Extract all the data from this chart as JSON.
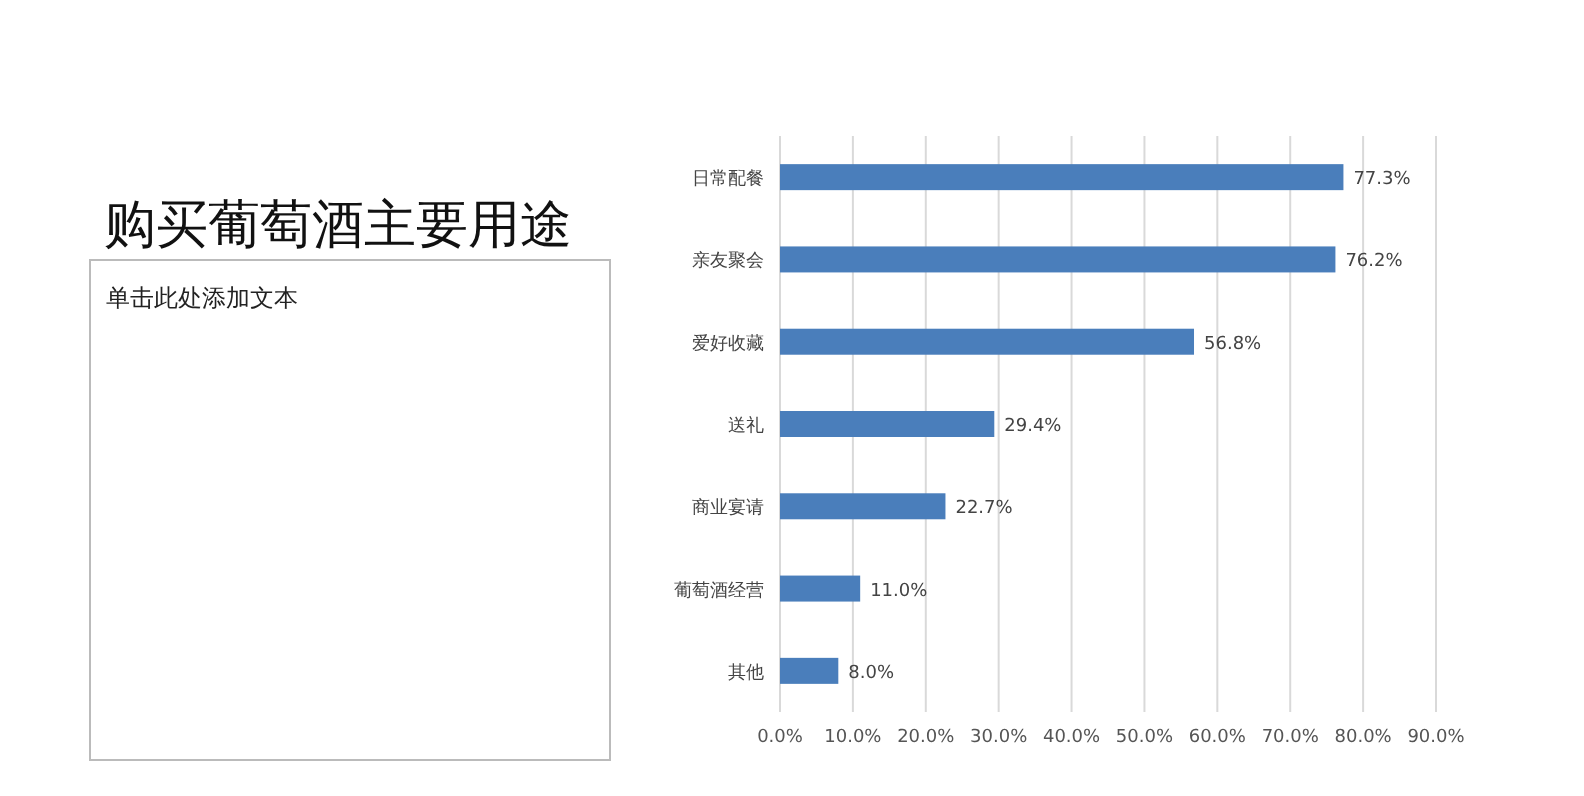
{
  "chart_data": {
    "type": "bar",
    "orientation": "horizontal",
    "title": "购买葡萄酒主要用途",
    "annotations": [
      "单击此处添加文本"
    ],
    "categories": [
      "日常配餐",
      "亲友聚会",
      "爱好收藏",
      "送礼",
      "商业宴请",
      "葡萄酒经营",
      "其他"
    ],
    "values": [
      77.3,
      76.2,
      56.8,
      29.4,
      22.7,
      11.0,
      8.0
    ],
    "value_labels": [
      "77.3%",
      "76.2%",
      "56.8%",
      "29.4%",
      "22.7%",
      "11.0%",
      "8.0%"
    ],
    "color": "#4a7ebb",
    "xlim": [
      0,
      90
    ],
    "xticks": [
      {
        "value": 0,
        "label": "0.0%"
      },
      {
        "value": 10,
        "label": "10.0%"
      },
      {
        "value": 20,
        "label": "20.0%"
      },
      {
        "value": 30,
        "label": "30.0%"
      },
      {
        "value": 40,
        "label": "40.0%"
      },
      {
        "value": 50,
        "label": "50.0%"
      },
      {
        "value": 60,
        "label": "60.0%"
      },
      {
        "value": 70,
        "label": "70.0%"
      },
      {
        "value": 80,
        "label": "80.0%"
      },
      {
        "value": 90,
        "label": "90.0%"
      }
    ],
    "grid": "x"
  }
}
